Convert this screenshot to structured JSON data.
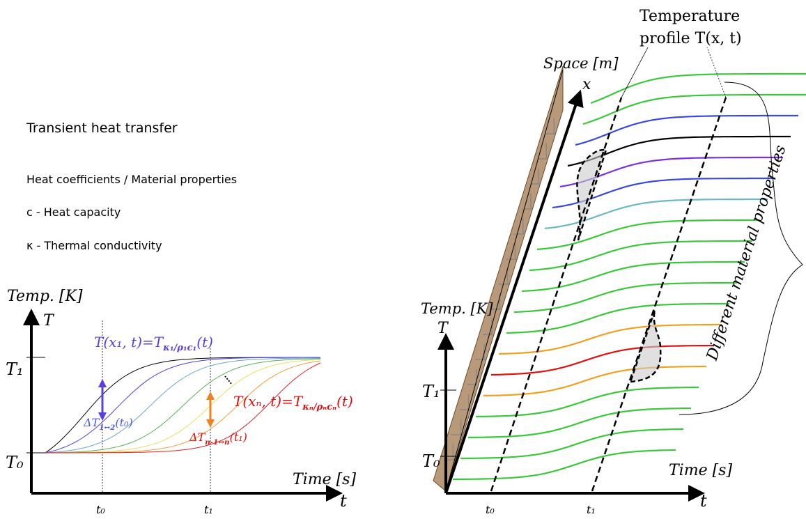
{
  "left": {
    "title": "Transient heat transfer",
    "heading": "Heat coefficients / Material properties",
    "items": [
      "c - Heat capacity",
      "κ - Thermal conductivity"
    ],
    "y_axis_label": "Temp. [K]",
    "y_axis_symbol": "T",
    "t1_level": "T₁",
    "t0_level": "T₀",
    "x_axis_label": "Time [s]",
    "x_axis_symbol": "t",
    "time_marks": [
      "t₀",
      "t₁"
    ],
    "first_curve_label": [
      "T(x₁, t)=T",
      "κ₁/ρ₁c₁",
      "(t)"
    ],
    "first_delta_label": [
      "ΔT",
      "1↔2",
      "(t₀)"
    ],
    "last_curve_label": [
      "T(xₙ, t)=T",
      "κₙ/ρₙcₙ",
      "(t)"
    ],
    "last_delta_label": [
      "ΔT",
      "n-1↔n",
      "(t₁)"
    ]
  },
  "right": {
    "profile_label": [
      "Temperature",
      "profile T(x, t)"
    ],
    "space_axis_label": "Space [m]",
    "space_axis_symbol": "x",
    "y_axis_label": "Temp. [K]",
    "y_axis_symbol": "T",
    "t1_level": "T₁",
    "t0_level": "T₀",
    "x_axis_label": "Time [s]",
    "x_axis_symbol": "t",
    "time_marks": [
      "t₀",
      "t₁"
    ],
    "brace_label": "Different material properties"
  }
}
